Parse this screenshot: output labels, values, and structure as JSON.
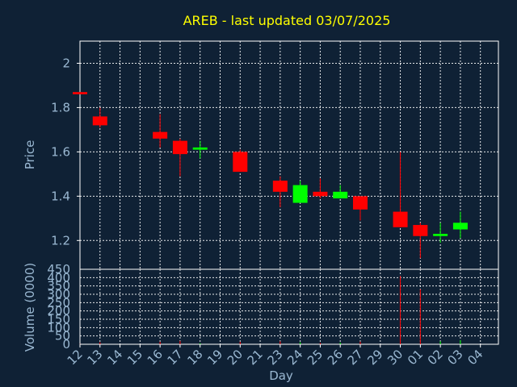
{
  "chart_data": {
    "type": "candlestick",
    "title": "AREB - last updated 03/07/2025",
    "xlabel": "Day",
    "price_panel": {
      "ylabel": "Price",
      "ylim": [
        1.07,
        2.1
      ],
      "yticks": [
        1.2,
        1.4,
        1.6,
        1.8,
        2
      ],
      "ytick_labels": [
        "1.2",
        "1.4",
        "1.6",
        "1.8",
        "2"
      ]
    },
    "volume_panel": {
      "ylabel": "Volume (0000)",
      "ylim": [
        0,
        450
      ],
      "yticks": [
        0,
        50,
        100,
        150,
        200,
        250,
        300,
        350,
        400,
        450
      ],
      "ytick_labels": [
        "0",
        "50",
        "100",
        "150",
        "200",
        "250",
        "300",
        "350",
        "400",
        "450"
      ]
    },
    "x_tick_labels": [
      "12",
      "13",
      "14",
      "15",
      "16",
      "17",
      "18",
      "19",
      "20",
      "21",
      "23",
      "24",
      "25",
      "26",
      "27",
      "29",
      "30",
      "01",
      "02",
      "03",
      "04"
    ],
    "candles": [
      {
        "day": "12",
        "open": 1.87,
        "close": 1.86,
        "high": 1.87,
        "low": 1.86,
        "volume": 1
      },
      {
        "day": "13",
        "open": 1.76,
        "close": 1.72,
        "high": 1.8,
        "low": 1.71,
        "volume": 12
      },
      {
        "day": "16",
        "open": 1.69,
        "close": 1.66,
        "high": 1.77,
        "low": 1.62,
        "volume": 15
      },
      {
        "day": "17",
        "open": 1.65,
        "close": 1.59,
        "high": 1.66,
        "low": 1.49,
        "volume": 20
      },
      {
        "day": "18",
        "open": 1.61,
        "close": 1.62,
        "high": 1.65,
        "low": 1.57,
        "volume": 6
      },
      {
        "day": "20",
        "open": 1.6,
        "close": 1.51,
        "high": 1.61,
        "low": 1.51,
        "volume": 15
      },
      {
        "day": "23",
        "open": 1.47,
        "close": 1.42,
        "high": 1.49,
        "low": 1.35,
        "volume": 18
      },
      {
        "day": "24",
        "open": 1.37,
        "close": 1.45,
        "high": 1.47,
        "low": 1.37,
        "volume": 12
      },
      {
        "day": "25",
        "open": 1.42,
        "close": 1.4,
        "high": 1.48,
        "low": 1.39,
        "volume": 8
      },
      {
        "day": "26",
        "open": 1.39,
        "close": 1.42,
        "high": 1.45,
        "low": 1.39,
        "volume": 10
      },
      {
        "day": "27",
        "open": 1.4,
        "close": 1.34,
        "high": 1.4,
        "low": 1.29,
        "volume": 16
      },
      {
        "day": "30",
        "open": 1.33,
        "close": 1.26,
        "high": 1.6,
        "low": 1.26,
        "volume": 410
      },
      {
        "day": "01",
        "open": 1.27,
        "close": 1.22,
        "high": 1.28,
        "low": 1.12,
        "volume": 330
      },
      {
        "day": "02",
        "open": 1.22,
        "close": 1.23,
        "high": 1.28,
        "low": 1.19,
        "volume": 18
      },
      {
        "day": "03",
        "open": 1.25,
        "close": 1.28,
        "high": 1.33,
        "low": 1.21,
        "volume": 25
      }
    ],
    "colors": {
      "background": "#0f2135",
      "up": "#00ff00",
      "down": "#ff0000",
      "grid": "#ffffff",
      "axis_text": "#9ab8d2",
      "title": "#ffff00"
    },
    "grid": true
  }
}
